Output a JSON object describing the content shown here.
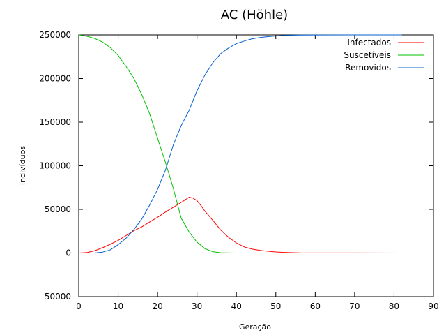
{
  "chart_data": {
    "type": "line",
    "title": "AC (Höhle)",
    "xlabel": "Geração",
    "ylabel": "Indivíduos",
    "xlim": [
      0,
      90
    ],
    "ylim": [
      -50000,
      250000
    ],
    "xticks": [
      "0",
      "10",
      "20",
      "30",
      "40",
      "50",
      "60",
      "70",
      "80",
      "90"
    ],
    "yticks": [
      "-50000",
      "0",
      "50000",
      "100000",
      "150000",
      "200000",
      "250000"
    ],
    "grid": false,
    "legend_position": "top-right",
    "series": [
      {
        "name": "Infectados",
        "color": "#ff0000",
        "x": [
          0,
          2,
          4,
          6,
          8,
          10,
          12,
          14,
          16,
          18,
          20,
          22,
          24,
          26,
          27,
          28,
          29,
          30,
          31,
          32,
          34,
          36,
          38,
          40,
          42,
          44,
          46,
          48,
          50,
          52,
          54,
          56,
          60,
          70,
          82
        ],
        "y": [
          0,
          500,
          2500,
          6000,
          10000,
          14500,
          20000,
          25500,
          30000,
          35500,
          41000,
          47000,
          52500,
          58000,
          61000,
          64000,
          63000,
          60000,
          54500,
          48000,
          37500,
          26500,
          18000,
          11500,
          7000,
          4500,
          3000,
          2000,
          1200,
          700,
          400,
          200,
          100,
          50,
          0
        ]
      },
      {
        "name": "Suscetíveis",
        "color": "#00c000",
        "x": [
          0,
          2,
          4,
          6,
          8,
          10,
          12,
          14,
          16,
          18,
          20,
          22,
          24,
          26,
          28,
          30,
          32,
          34,
          36,
          38,
          40,
          50,
          60,
          70,
          82
        ],
        "y": [
          250000,
          248500,
          246000,
          242000,
          235500,
          226500,
          214000,
          200000,
          181500,
          159500,
          131500,
          104000,
          74000,
          40000,
          24000,
          12500,
          5000,
          1500,
          300,
          100,
          0,
          0,
          0,
          0,
          0
        ]
      },
      {
        "name": "Removidos",
        "color": "#0060d0",
        "x": [
          0,
          2,
          4,
          6,
          8,
          10,
          12,
          14,
          16,
          18,
          20,
          22,
          24,
          26,
          28,
          30,
          32,
          34,
          36,
          38,
          40,
          42,
          44,
          46,
          48,
          50,
          52,
          54,
          56,
          60,
          70,
          82
        ],
        "y": [
          0,
          0,
          0,
          1000,
          3500,
          9500,
          17000,
          27000,
          39000,
          55000,
          73000,
          95000,
          124000,
          146000,
          163500,
          186000,
          204000,
          218000,
          228500,
          235000,
          240000,
          243000,
          245500,
          247000,
          248000,
          248800,
          249300,
          249600,
          249800,
          249900,
          250000,
          250000
        ]
      }
    ]
  }
}
